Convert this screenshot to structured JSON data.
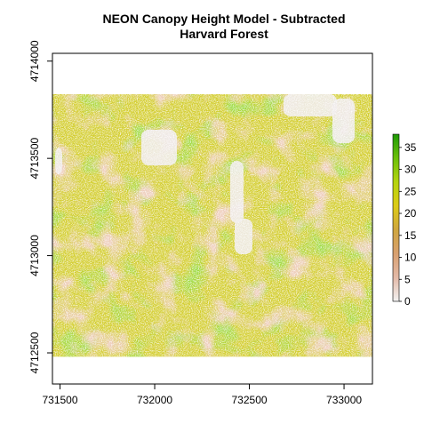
{
  "chart_data": {
    "type": "heatmap",
    "title_line1": "NEON Canopy Height Model - Subtracted",
    "title_line2": "Harvard Forest",
    "x_ticks": [
      731500,
      732000,
      732500,
      733000
    ],
    "y_ticks": [
      4712500,
      4713000,
      4713500,
      4714000
    ],
    "x_tick_labels": [
      "731500",
      "732000",
      "732500",
      "733000"
    ],
    "y_tick_labels": [
      "4712500",
      "4713000",
      "4713500",
      "4714000"
    ],
    "xlim": [
      731460,
      733150
    ],
    "ylim": [
      4712340,
      4714040
    ],
    "raster_extent": {
      "x": [
        731460,
        733150
      ],
      "y": [
        4712480,
        4713830
      ]
    },
    "legend": {
      "position": "right",
      "range": [
        0,
        38
      ],
      "ticks": [
        0,
        5,
        10,
        15,
        20,
        25,
        30,
        35
      ],
      "tick_labels": [
        "0",
        "5",
        "10",
        "15",
        "20",
        "25",
        "30",
        "35"
      ],
      "colors": [
        "#f2f2f2",
        "#e3b9a7",
        "#d8a070",
        "#cfa63f",
        "#dccb16",
        "#b5d40e",
        "#6cc00a",
        "#1e9a06"
      ]
    },
    "grid": false
  }
}
